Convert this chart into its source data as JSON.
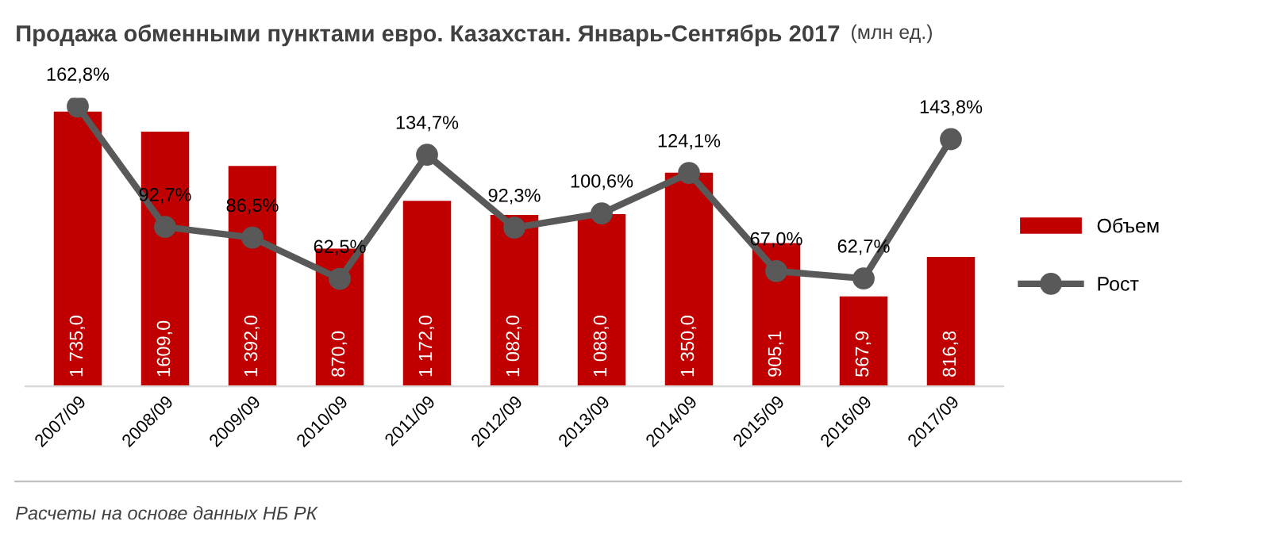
{
  "chart_data": {
    "type": "bar",
    "title": "Продажа обменными пунктами евро. Казахстан. Январь-Сентябрь 2017",
    "subtitle": "(млн ед.)",
    "categories": [
      "2007/09",
      "2008/09",
      "2009/09",
      "2010/09",
      "2011/09",
      "2012/09",
      "2013/09",
      "2014/09",
      "2015/09",
      "2016/09",
      "2017/09"
    ],
    "series": [
      {
        "name": "Объем",
        "color": "#c00000",
        "values": [
          1735.0,
          1609.0,
          1392.0,
          870.0,
          1172.0,
          1082.0,
          1088.0,
          1350.0,
          905.1,
          567.9,
          816.8
        ],
        "value_labels": [
          "1 735,0",
          "1609,0",
          "1 392,0",
          "870,0",
          "1 172,0",
          "1 082,0",
          "1 088,0",
          "1 350,0",
          "905,1",
          "567,9",
          "816,8"
        ]
      },
      {
        "name": "Рост",
        "type": "line",
        "axis": "y2",
        "color": "#595959",
        "marker": "circle",
        "values": [
          162.8,
          92.7,
          86.5,
          62.5,
          134.7,
          92.3,
          100.6,
          124.1,
          67.0,
          62.7,
          143.8
        ],
        "value_labels": [
          "162,8%",
          "92,7%",
          "86,5%",
          "62,5%",
          "134,7%",
          "92,3%",
          "100,6%",
          "124,1%",
          "67,0%",
          "62,7%",
          "143,8%"
        ]
      }
    ],
    "tick_labels": "x",
    "grid": false,
    "legend": "right",
    "annotations": [
      "Расчеты на основе данных НБ РК"
    ]
  }
}
